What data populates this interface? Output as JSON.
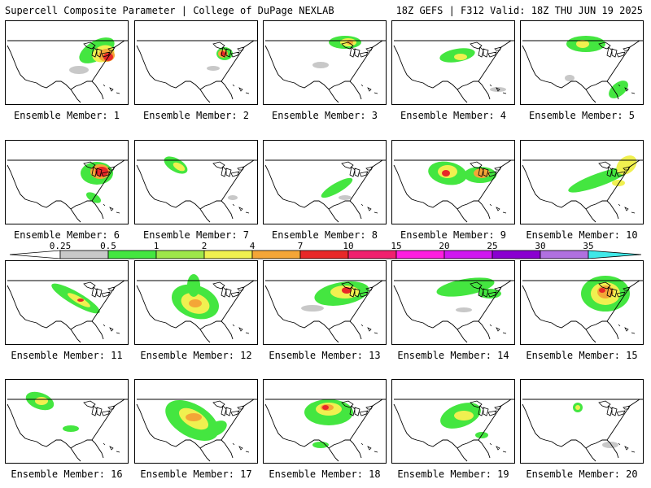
{
  "header": {
    "left": "Supercell Composite Parameter | College of DuPage NEXLAB",
    "right": "18Z GEFS | F312 Valid: 18Z THU JUN 19 2025"
  },
  "caption_prefix": "Ensemble Member:",
  "colorbar": {
    "labels": [
      "0.25",
      "0.5",
      "1",
      "2",
      "4",
      "7",
      "10",
      "15",
      "20",
      "25",
      "30",
      "35"
    ],
    "colors": [
      "#c8c8c8",
      "#44e640",
      "#9ee64a",
      "#f0f050",
      "#f4a637",
      "#e82828",
      "#f0206e",
      "#ff1ee0",
      "#d018f0",
      "#8a00d0",
      "#b070e0",
      "#40e8e8"
    ]
  },
  "field_colors": {
    "gray": "#c8c8c8",
    "green": "#44e640",
    "yellow": "#f0f050",
    "orange": "#f4a637",
    "red": "#e82828"
  },
  "members": [
    {
      "id": "1",
      "label": "Ensemble Member: 1"
    },
    {
      "id": "2",
      "label": "Ensemble Member: 2"
    },
    {
      "id": "3",
      "label": "Ensemble Member: 3"
    },
    {
      "id": "4",
      "label": "Ensemble Member: 4"
    },
    {
      "id": "5",
      "label": "Ensemble Member: 5"
    },
    {
      "id": "6",
      "label": "Ensemble Member: 6"
    },
    {
      "id": "7",
      "label": "Ensemble Member: 7"
    },
    {
      "id": "8",
      "label": "Ensemble Member: 8"
    },
    {
      "id": "9",
      "label": "Ensemble Member: 9"
    },
    {
      "id": "10",
      "label": "Ensemble Member: 10"
    },
    {
      "id": "11",
      "label": "Ensemble Member: 11"
    },
    {
      "id": "12",
      "label": "Ensemble Member: 12"
    },
    {
      "id": "13",
      "label": "Ensemble Member: 13"
    },
    {
      "id": "14",
      "label": "Ensemble Member: 14"
    },
    {
      "id": "15",
      "label": "Ensemble Member: 15"
    },
    {
      "id": "16",
      "label": "Ensemble Member: 16"
    },
    {
      "id": "17",
      "label": "Ensemble Member: 17"
    },
    {
      "id": "18",
      "label": "Ensemble Member: 18"
    },
    {
      "id": "19",
      "label": "Ensemble Member: 19"
    },
    {
      "id": "20",
      "label": "Ensemble Member: 20"
    }
  ]
}
